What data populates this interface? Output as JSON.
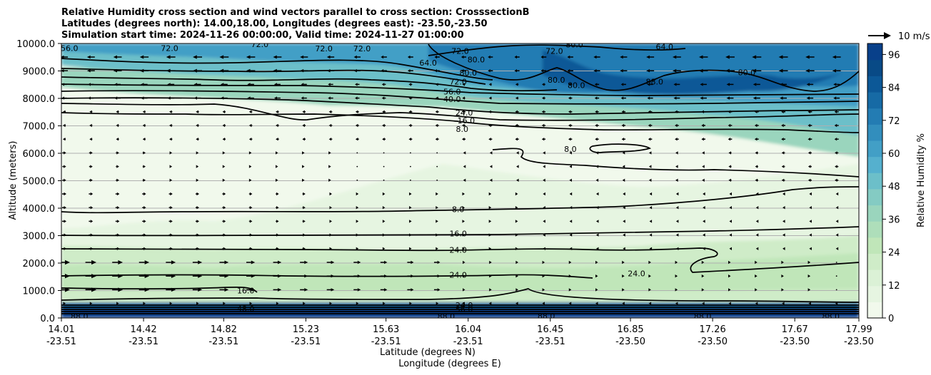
{
  "chart_data": {
    "type": "contour",
    "title_lines": [
      "Relative Humidity cross section and wind vectors parallel to cross section: CrosssectionB",
      "Latitudes (degrees north): 14.00,18.00, Longitudes (degrees east): -23.50,-23.50",
      "Simulation start time: 2024-11-26 00:00:00, Valid time: 2024-11-27 01:00:00"
    ],
    "ylabel": "Altitude (meters)",
    "xlabel_line1": "Latitude (degrees N)",
    "xlabel_line2": "Longitude (degrees E)",
    "colorbar_label": "Relative Humidity %",
    "quiver_key_label": "10 m/s",
    "y_range": [
      0,
      10000
    ],
    "y_ticks": [
      {
        "value": 0,
        "label": "0.0"
      },
      {
        "value": 1000,
        "label": "1000.0"
      },
      {
        "value": 2000,
        "label": "2000.0"
      },
      {
        "value": 3000,
        "label": "3000.0"
      },
      {
        "value": 4000,
        "label": "4000.0"
      },
      {
        "value": 5000,
        "label": "5000.0"
      },
      {
        "value": 6000,
        "label": "6000.0"
      },
      {
        "value": 7000,
        "label": "7000.0"
      },
      {
        "value": 8000,
        "label": "8000.0"
      },
      {
        "value": 9000,
        "label": "9000.0"
      },
      {
        "value": 10000,
        "label": "10000.0"
      }
    ],
    "x_range": [
      14.01,
      17.99
    ],
    "x_ticks": [
      {
        "value": 14.01,
        "lat": "14.01",
        "lon": "-23.51"
      },
      {
        "value": 14.42,
        "lat": "14.42",
        "lon": "-23.51"
      },
      {
        "value": 14.82,
        "lat": "14.82",
        "lon": "-23.51"
      },
      {
        "value": 15.23,
        "lat": "15.23",
        "lon": "-23.51"
      },
      {
        "value": 15.63,
        "lat": "15.63",
        "lon": "-23.51"
      },
      {
        "value": 16.04,
        "lat": "16.04",
        "lon": "-23.51"
      },
      {
        "value": 16.45,
        "lat": "16.45",
        "lon": "-23.51"
      },
      {
        "value": 16.85,
        "lat": "16.85",
        "lon": "-23.50"
      },
      {
        "value": 17.26,
        "lat": "17.26",
        "lon": "-23.50"
      },
      {
        "value": 17.67,
        "lat": "17.67",
        "lon": "-23.50"
      },
      {
        "value": 17.99,
        "lat": "17.99",
        "lon": "-23.50"
      }
    ],
    "grid_y": true,
    "colorbar_range": [
      0,
      100
    ],
    "colorbar_ticks": [
      0,
      12,
      24,
      36,
      48,
      60,
      72,
      84,
      96
    ],
    "colorbar_colors": [
      "#f1f9ec",
      "#e6f5e1",
      "#dbf1d6",
      "#cfecc8",
      "#c0e6b9",
      "#aedeba",
      "#9ad5bd",
      "#84cbc3",
      "#6cbfc9",
      "#55b0ce",
      "#429fc6",
      "#328ebd",
      "#237cb3",
      "#166aa5",
      "#0c5897",
      "#084a86",
      "#08408a"
    ],
    "contour_labels": [
      {
        "text": "56.0",
        "x": 14.05,
        "y": 9830
      },
      {
        "text": "72.0",
        "x": 14.55,
        "y": 9830
      },
      {
        "text": "72.0",
        "x": 15.0,
        "y": 9980
      },
      {
        "text": "72.0",
        "x": 15.32,
        "y": 9820
      },
      {
        "text": "72.0",
        "x": 15.51,
        "y": 9820
      },
      {
        "text": "72.0",
        "x": 16.0,
        "y": 9730
      },
      {
        "text": "72.0",
        "x": 16.47,
        "y": 9730
      },
      {
        "text": "80.0",
        "x": 16.57,
        "y": 9960
      },
      {
        "text": "64.0",
        "x": 17.02,
        "y": 9880
      },
      {
        "text": "64.0",
        "x": 15.84,
        "y": 9300
      },
      {
        "text": "80.0",
        "x": 16.08,
        "y": 9410
      },
      {
        "text": "80.0",
        "x": 16.04,
        "y": 8940
      },
      {
        "text": "80.0",
        "x": 16.48,
        "y": 8680
      },
      {
        "text": "80.0",
        "x": 16.58,
        "y": 8480
      },
      {
        "text": "88.0",
        "x": 16.97,
        "y": 8610
      },
      {
        "text": "80.0",
        "x": 17.43,
        "y": 8950
      },
      {
        "text": "72.0",
        "x": 15.99,
        "y": 8610
      },
      {
        "text": "56.0",
        "x": 15.96,
        "y": 8250
      },
      {
        "text": "40.0",
        "x": 15.96,
        "y": 7970
      },
      {
        "text": "24.0",
        "x": 16.02,
        "y": 7480
      },
      {
        "text": "16.0",
        "x": 16.03,
        "y": 7200
      },
      {
        "text": "8.0",
        "x": 16.01,
        "y": 6880
      },
      {
        "text": "8.0",
        "x": 16.55,
        "y": 6150
      },
      {
        "text": "8.0",
        "x": 15.99,
        "y": 3960
      },
      {
        "text": "16.0",
        "x": 15.99,
        "y": 3080
      },
      {
        "text": "24.0",
        "x": 15.99,
        "y": 2480
      },
      {
        "text": "24.0",
        "x": 15.99,
        "y": 1570
      },
      {
        "text": "24.0",
        "x": 16.88,
        "y": 1620
      },
      {
        "text": "16.0",
        "x": 14.93,
        "y": 1000
      },
      {
        "text": "88.0",
        "x": 14.1,
        "y": 60
      },
      {
        "text": "48.0",
        "x": 14.93,
        "y": 340
      },
      {
        "text": "88.0",
        "x": 15.93,
        "y": 60
      },
      {
        "text": "88.0",
        "x": 16.43,
        "y": 80
      },
      {
        "text": "88.0",
        "x": 17.21,
        "y": 70
      },
      {
        "text": "88.0",
        "x": 17.85,
        "y": 60
      },
      {
        "text": "24.0",
        "x": 16.02,
        "y": 470
      },
      {
        "text": "56.0",
        "x": 16.02,
        "y": 330
      }
    ]
  }
}
